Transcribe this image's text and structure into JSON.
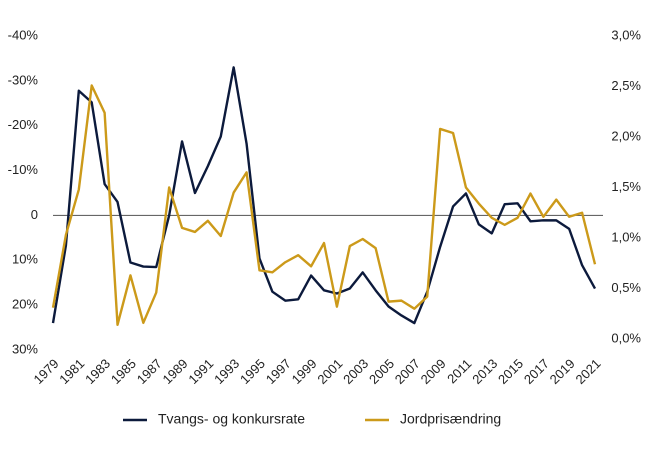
{
  "chart_data": {
    "type": "line",
    "categories": [
      "1979",
      null,
      "1981",
      null,
      "1983",
      null,
      "1985",
      null,
      "1987",
      null,
      "1989",
      null,
      "1991",
      null,
      "1993",
      null,
      "1995",
      null,
      "1997",
      null,
      "1999",
      null,
      "2001",
      null,
      "2003",
      null,
      "2005",
      null,
      "2007",
      null,
      "2009",
      null,
      "2011",
      null,
      "2013",
      null,
      "2015",
      null,
      "2017",
      null,
      "2019",
      null,
      "2021"
    ],
    "ylim": [
      -40,
      30
    ],
    "y_inverted": true,
    "yticks": [
      {
        "value": -40,
        "label": "-40%"
      },
      {
        "value": -30,
        "label": "-30%"
      },
      {
        "value": -20,
        "label": "-20%"
      },
      {
        "value": -10,
        "label": "-10%"
      },
      0,
      {
        "value": 10,
        "label": "10%"
      },
      {
        "value": 20,
        "label": "20%"
      },
      {
        "value": 30,
        "label": "30%"
      }
    ],
    "y2lim": [
      0,
      3
    ],
    "y2ticks": [
      {
        "value": 0,
        "label": "0,0%"
      },
      {
        "value": 0.5,
        "label": "0,5%"
      },
      {
        "value": 1,
        "label": "1,0%"
      },
      {
        "value": 1.5,
        "label": "1,5%"
      },
      {
        "value": 2,
        "label": "2,0%"
      },
      {
        "value": 2.5,
        "label": "2,5%"
      },
      {
        "value": 3,
        "label": "3,0%"
      }
    ],
    "zero_line": true,
    "legend": "bottom",
    "series": [
      {
        "name": "Tvangs- og konkursrate",
        "color": "#0c1a3c",
        "values": [
          24,
          6.7,
          -27.8,
          -25.2,
          -7,
          -3,
          10.5,
          11.4,
          11.5,
          0,
          -16.5,
          -5,
          -11,
          -17.6,
          -33,
          -16,
          9.6,
          17,
          19,
          18.7,
          13.4,
          16.7,
          17.4,
          16.3,
          12.7,
          16.7,
          20.3,
          22.3,
          24,
          17,
          7,
          -2,
          -4.9,
          2,
          4,
          -2.5,
          -2.7,
          1.3,
          1.1,
          1.1,
          3,
          11.1,
          16.3
        ]
      },
      {
        "name": "Jordprisændring",
        "color": "#cc9a1a",
        "axis": "y2",
        "values": [
          0.31,
          1.03,
          1.48,
          2.51,
          2.24,
          0.14,
          0.63,
          0.16,
          0.46,
          1.5,
          1.1,
          1.06,
          1.17,
          1.02,
          1.45,
          1.65,
          0.68,
          0.66,
          0.76,
          0.83,
          0.72,
          0.95,
          0.32,
          0.92,
          0.99,
          0.9,
          0.37,
          0.38,
          0.3,
          0.42,
          2.08,
          2.04,
          1.5,
          1.34,
          1.2,
          1.13,
          1.2,
          1.44,
          1.21,
          1.38,
          1.21,
          1.25,
          0.74
        ]
      }
    ]
  }
}
